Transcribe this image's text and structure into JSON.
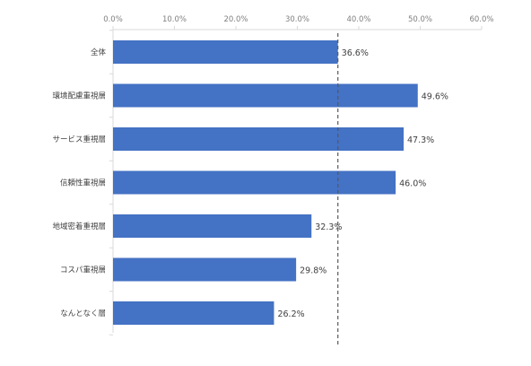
{
  "chart_data": {
    "type": "bar",
    "orientation": "horizontal",
    "categories": [
      "全体",
      "環境配慮重視層",
      "サービス重視層",
      "信頼性重視層",
      "地域密着重視層",
      "コスパ重視層",
      "なんとなく層"
    ],
    "values": [
      36.6,
      49.6,
      47.3,
      46.0,
      32.3,
      29.8,
      26.2
    ],
    "value_labels": [
      "36.6%",
      "49.6%",
      "47.3%",
      "46.0%",
      "32.3%",
      "29.8%",
      "26.2%"
    ],
    "x_ticks": [
      "0.0%",
      "10.0%",
      "20.0%",
      "30.0%",
      "40.0%",
      "50.0%",
      "60.0%"
    ],
    "xlim": [
      0,
      60
    ],
    "axis_position": "top",
    "reference_line": {
      "value": 36.6,
      "style": "dashed"
    },
    "grid": false,
    "colors": {
      "bar": "#4472c4",
      "reference_line": "#595959",
      "axis": "#d9d9d9"
    }
  }
}
